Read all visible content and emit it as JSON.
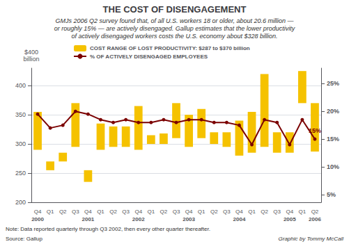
{
  "chart_data": {
    "type": "bar",
    "title": "THE COST OF DISENGAGEMENT",
    "subtitle": [
      "GMJs 2006 Q2 survey found that, of all U.S. workers 18 or older, about 20.6 million —",
      "or roughly 15% — are actively disengaged. Gallup estimates that the lower productivity",
      "of actively disengaged workers costs the U.S. economy about $328 billion."
    ],
    "ylabel": "$400\nbillion",
    "categories": [
      "Q4",
      "Q1",
      "Q2",
      "Q3",
      "Q4",
      "Q1",
      "Q2",
      "Q3",
      "Q4",
      "Q1",
      "Q2",
      "Q3",
      "Q4",
      "Q1",
      "Q2",
      "Q3",
      "Q4",
      "Q1",
      "Q2",
      "Q3",
      "Q4",
      "Q1",
      "Q2"
    ],
    "category_groups": [
      "2000",
      null,
      null,
      null,
      "2001",
      null,
      null,
      null,
      "2002",
      null,
      null,
      null,
      "2003",
      null,
      null,
      null,
      "2004",
      null,
      null,
      null,
      "2005",
      null,
      "2006"
    ],
    "series": [
      {
        "name": "COST RANGE OF LOST PRODUCTIVITY: $287 to $370 billion",
        "type": "bar",
        "color": "#F5C200",
        "values": [
          [
            290,
            355
          ],
          [
            255,
            270
          ],
          [
            270,
            285
          ],
          [
            295,
            370
          ],
          [
            235,
            255
          ],
          [
            290,
            335
          ],
          [
            295,
            330
          ],
          [
            295,
            330
          ],
          [
            290,
            365
          ],
          [
            300,
            315
          ],
          [
            300,
            318
          ],
          [
            310,
            370
          ],
          [
            295,
            350
          ],
          [
            310,
            360
          ],
          [
            300,
            320
          ],
          [
            295,
            320
          ],
          [
            280,
            340
          ],
          [
            285,
            355
          ],
          [
            295,
            420
          ],
          [
            285,
            320
          ],
          [
            285,
            320
          ],
          [
            370,
            425
          ],
          [
            287,
            370
          ]
        ]
      },
      {
        "name": "% OF ACTIVELY DISENGAGED EMPLOYEES",
        "type": "line",
        "axis": "y2",
        "color": "#7B0000",
        "marker": "circle",
        "values": [
          19.5,
          17.0,
          17.5,
          20.0,
          19.5,
          18.5,
          18.0,
          18.5,
          18.0,
          18.0,
          18.5,
          18.0,
          18.5,
          18.5,
          18.0,
          18.0,
          17.5,
          14.0,
          18.5,
          18.0,
          14.0,
          18.5,
          15.0
        ],
        "value_labels": [
          null,
          null,
          null,
          null,
          null,
          null,
          null,
          null,
          null,
          null,
          null,
          null,
          null,
          null,
          null,
          null,
          null,
          null,
          null,
          null,
          null,
          null,
          "15%"
        ]
      }
    ],
    "ylim": [
      200,
      430
    ],
    "yticks": [
      200,
      250,
      300,
      350,
      400
    ],
    "y2lim": [
      3.6,
      27.8
    ],
    "y2ticks": [
      {
        "value": 5,
        "label": "5%"
      },
      {
        "value": 10,
        "label": "10%"
      },
      {
        "value": 15,
        "label": "15%"
      },
      {
        "value": 20,
        "label": "20%"
      },
      {
        "value": 25,
        "label": "25%"
      }
    ],
    "grid": true,
    "legend": "top",
    "note": "Note: Data reported quarterly through Q3 2002, then every other quarter thereafter.",
    "source": "Source: Gallup",
    "credit": "Graphic by Tommy McCall"
  }
}
